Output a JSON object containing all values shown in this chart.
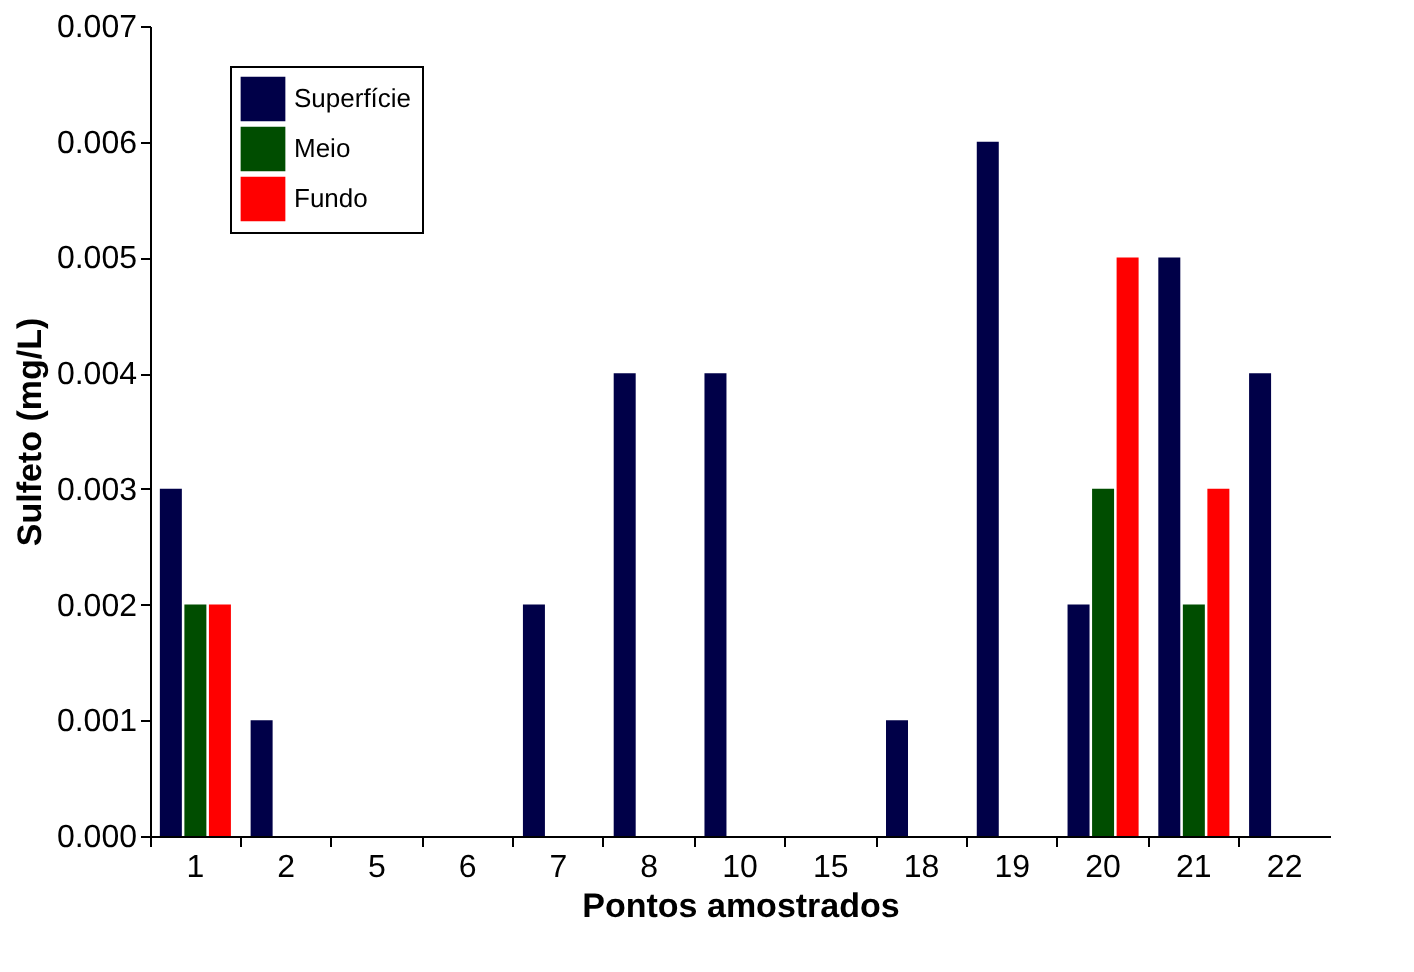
{
  "chart_data": {
    "type": "bar",
    "xlabel": "Pontos amostrados",
    "ylabel": "Sulfeto (mg/L)",
    "categories": [
      "1",
      "2",
      "5",
      "6",
      "7",
      "8",
      "10",
      "15",
      "18",
      "19",
      "20",
      "21",
      "22"
    ],
    "series": [
      {
        "name": "Superfície",
        "color": "#000048",
        "values": [
          0.003,
          0.001,
          null,
          null,
          0.002,
          0.004,
          0.004,
          null,
          0.001,
          0.006,
          0.002,
          0.005,
          0.004
        ]
      },
      {
        "name": "Meio",
        "color": "#004d00",
        "values": [
          0.002,
          null,
          null,
          null,
          null,
          null,
          null,
          null,
          null,
          null,
          0.003,
          0.002,
          null
        ]
      },
      {
        "name": "Fundo",
        "color": "#ff0000",
        "values": [
          0.002,
          null,
          null,
          null,
          null,
          null,
          null,
          null,
          null,
          null,
          0.005,
          0.003,
          null
        ]
      }
    ],
    "ylim": [
      0,
      0.007
    ],
    "yticks": [
      {
        "value": 0,
        "label": "0.000"
      },
      {
        "value": 0.001,
        "label": "0.001"
      },
      {
        "value": 0.002,
        "label": "0.002"
      },
      {
        "value": 0.003,
        "label": "0.003"
      },
      {
        "value": 0.004,
        "label": "0.004"
      },
      {
        "value": 0.005,
        "label": "0.005"
      },
      {
        "value": 0.006,
        "label": "0.006"
      },
      {
        "value": 0.007,
        "label": "0.007"
      }
    ],
    "grid": false,
    "legend": "top left"
  }
}
